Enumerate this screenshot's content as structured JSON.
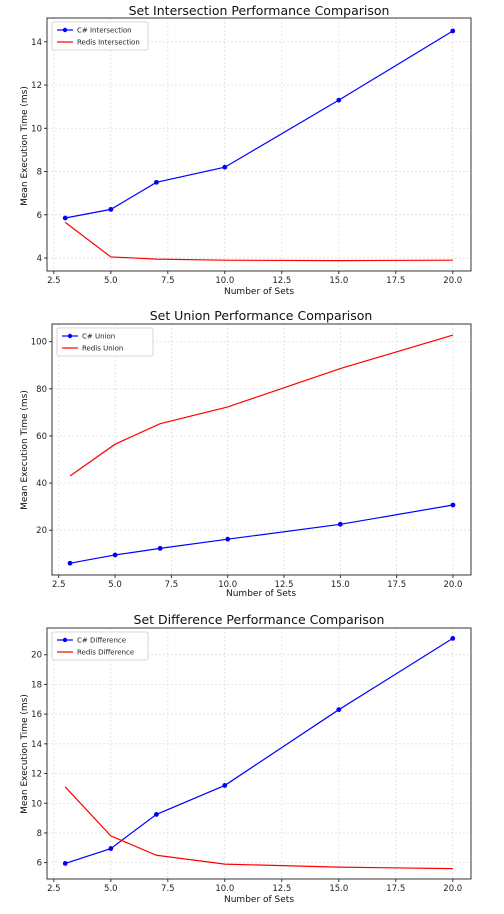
{
  "chart_data": [
    {
      "type": "line",
      "title": "Set Intersection Performance Comparison",
      "xlabel": "Number of Sets",
      "ylabel": "Mean Execution Time (ms)",
      "x": [
        3,
        5,
        7,
        10,
        15,
        20
      ],
      "xlim": [
        2.2,
        20.8
      ],
      "ylim": [
        3.4,
        15.1
      ],
      "xticks": [
        "2.5",
        "5.0",
        "7.5",
        "10.0",
        "12.5",
        "15.0",
        "17.5",
        "20.0"
      ],
      "xtick_values": [
        2.5,
        5.0,
        7.5,
        10.0,
        12.5,
        15.0,
        17.5,
        20.0
      ],
      "yticks": [
        "4",
        "6",
        "8",
        "10",
        "12",
        "14"
      ],
      "ytick_values": [
        4,
        6,
        8,
        10,
        12,
        14
      ],
      "grid": true,
      "legend_position": "top-left",
      "series": [
        {
          "name": "C# Intersection",
          "values": [
            5.85,
            6.25,
            7.5,
            8.2,
            11.3,
            14.5
          ],
          "color": "#0000ff",
          "marker": true
        },
        {
          "name": "Redis Intersection",
          "values": [
            5.65,
            4.05,
            3.95,
            3.9,
            3.88,
            3.9
          ],
          "color": "#ff0000",
          "marker": false
        }
      ]
    },
    {
      "type": "line",
      "title": "Set Union Performance Comparison",
      "xlabel": "Number of Sets",
      "ylabel": "Mean Execution Time (ms)",
      "x": [
        3,
        5,
        7,
        10,
        15,
        20
      ],
      "xlim": [
        2.2,
        20.8
      ],
      "ylim": [
        1.0,
        107.5
      ],
      "xticks": [
        "2.5",
        "5.0",
        "7.5",
        "10.0",
        "12.5",
        "15.0",
        "17.5",
        "20.0"
      ],
      "xtick_values": [
        2.5,
        5.0,
        7.5,
        10.0,
        12.5,
        15.0,
        17.5,
        20.0
      ],
      "yticks": [
        "20",
        "40",
        "60",
        "80",
        "100"
      ],
      "ytick_values": [
        20,
        40,
        60,
        80,
        100
      ],
      "grid": true,
      "legend_position": "top-left",
      "series": [
        {
          "name": "C# Union",
          "values": [
            6.0,
            9.5,
            12.3,
            16.2,
            22.5,
            30.7
          ],
          "color": "#0000ff",
          "marker": true
        },
        {
          "name": "Redis Union",
          "values": [
            43.0,
            56.5,
            65.2,
            72.3,
            88.6,
            102.8
          ],
          "color": "#ff0000",
          "marker": false
        }
      ]
    },
    {
      "type": "line",
      "title": "Set Difference Performance Comparison",
      "xlabel": "Number of Sets",
      "ylabel": "Mean Execution Time (ms)",
      "x": [
        3,
        5,
        7,
        10,
        15,
        20
      ],
      "xlim": [
        2.2,
        20.8
      ],
      "ylim": [
        4.9,
        21.8
      ],
      "xticks": [
        "2.5",
        "5.0",
        "7.5",
        "10.0",
        "12.5",
        "15.0",
        "17.5",
        "20.0"
      ],
      "xtick_values": [
        2.5,
        5.0,
        7.5,
        10.0,
        12.5,
        15.0,
        17.5,
        20.0
      ],
      "yticks": [
        "6",
        "8",
        "10",
        "12",
        "14",
        "16",
        "18",
        "20"
      ],
      "ytick_values": [
        6,
        8,
        10,
        12,
        14,
        16,
        18,
        20
      ],
      "grid": true,
      "legend_position": "top-left",
      "series": [
        {
          "name": "C# Difference",
          "values": [
            5.95,
            6.95,
            9.25,
            11.2,
            16.3,
            21.1
          ],
          "color": "#0000ff",
          "marker": true
        },
        {
          "name": "Redis Difference",
          "values": [
            11.1,
            7.8,
            6.5,
            5.9,
            5.7,
            5.6
          ],
          "color": "#ff0000",
          "marker": false
        }
      ]
    }
  ]
}
